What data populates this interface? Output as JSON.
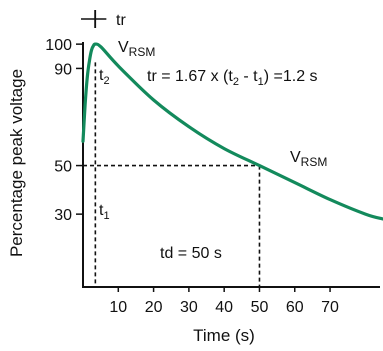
{
  "chart_data": {
    "type": "line",
    "xlabel": "Time (s)",
    "ylabel": "Percentage peak voltage",
    "xticks": [
      10,
      20,
      30,
      40,
      50,
      60,
      70
    ],
    "yticks": [
      30,
      50,
      90,
      100
    ],
    "xlim": [
      0,
      85
    ],
    "ylim": [
      0,
      105
    ],
    "series": [
      {
        "color": "#138a5c",
        "points": [
          {
            "x": 0,
            "y": 60
          },
          {
            "x": 0.6,
            "y": 75
          },
          {
            "x": 1.2,
            "y": 86
          },
          {
            "x": 1.8,
            "y": 93
          },
          {
            "x": 2.4,
            "y": 97.5
          },
          {
            "x": 3.0,
            "y": 99.5
          },
          {
            "x": 3.5,
            "y": 100
          },
          {
            "x": 5,
            "y": 99
          },
          {
            "x": 10,
            "y": 91
          },
          {
            "x": 20,
            "y": 77
          },
          {
            "x": 30,
            "y": 66
          },
          {
            "x": 40,
            "y": 57
          },
          {
            "x": 50,
            "y": 50
          },
          {
            "x": 60,
            "y": 43
          },
          {
            "x": 70,
            "y": 36
          },
          {
            "x": 80,
            "y": 30
          },
          {
            "x": 85,
            "y": 28
          }
        ]
      }
    ],
    "guides": {
      "t1": {
        "x": 3.5,
        "y": 30
      },
      "t2": {
        "x": 3.5,
        "y": 90
      },
      "td": {
        "x": 50,
        "y": 50
      }
    },
    "tr_bracket_from": 0,
    "tr_bracket_to": 3.5
  },
  "labels": {
    "vrsm_peak": "V",
    "vrsm_peak_sub": "RSM",
    "vrsm_curve": "V",
    "vrsm_curve_sub": "RSM",
    "t2": "t",
    "t2_sub": "2",
    "t1": "t",
    "t1_sub": "1",
    "tr_top": "tr",
    "tr_formula_a": "tr = 1.67 x (t",
    "tr_formula_sub2": "2",
    "tr_formula_b": " - t",
    "tr_formula_sub1": "1",
    "tr_formula_c": ") =1.2  s",
    "td": "td = 50  s"
  }
}
